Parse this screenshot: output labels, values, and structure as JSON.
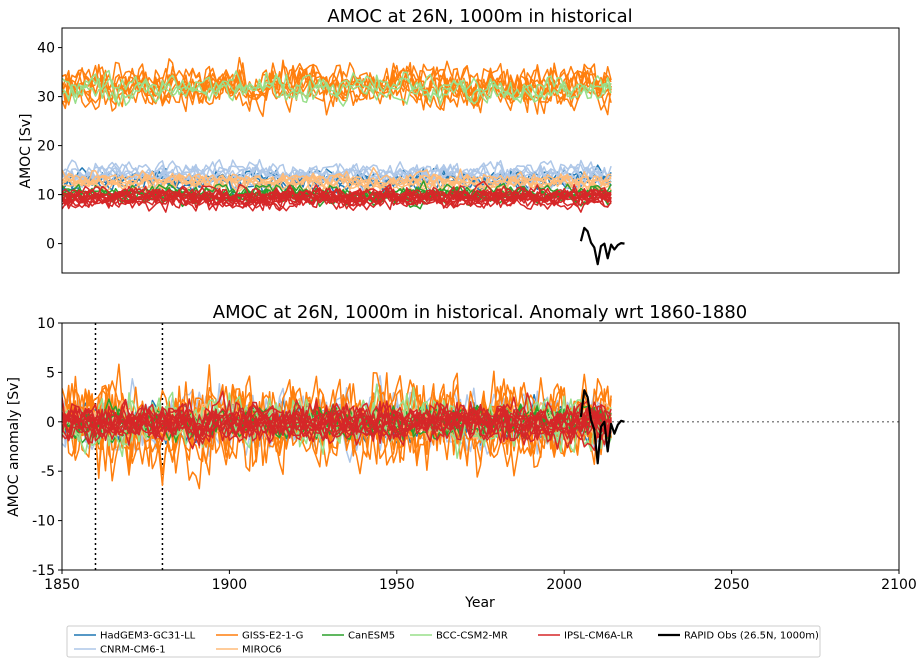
{
  "chart_data": [
    {
      "type": "line",
      "title": "AMOC at 26N, 1000m in historical",
      "xlabel": "",
      "ylabel": "AMOC [Sv]",
      "xlim": [
        1850,
        2100
      ],
      "ylim": [
        -6,
        44
      ],
      "yticks": [
        0,
        10,
        20,
        30,
        40
      ],
      "show_xticks": false,
      "series": [
        {
          "name": "HadGEM3-GC31-LL",
          "color": "#1f77b4",
          "x_range": [
            1850,
            2014
          ],
          "mean": 12.6,
          "amp": 1.3,
          "members": 4
        },
        {
          "name": "CNRM-CM6-1",
          "color": "#aec7e8",
          "x_range": [
            1850,
            2014
          ],
          "mean": 14.2,
          "amp": 1.4,
          "members": 6
        },
        {
          "name": "GISS-E2-1-G",
          "color": "#ff7f0e",
          "x_range": [
            1850,
            2014
          ],
          "mean": 32.2,
          "amp": 2.8,
          "members": 8
        },
        {
          "name": "MIROC6",
          "color": "#ffbb78",
          "x_range": [
            1850,
            2014
          ],
          "mean": 12.4,
          "amp": 1.1,
          "members": 6
        },
        {
          "name": "CanESM5",
          "color": "#2ca02c",
          "x_range": [
            1850,
            2014
          ],
          "mean": 10.2,
          "amp": 1.0,
          "members": 6
        },
        {
          "name": "BCC-CSM2-MR",
          "color": "#98df8a",
          "x_range": [
            1850,
            2014
          ],
          "mean": 31.5,
          "amp": 1.8,
          "members": 3
        },
        {
          "name": "IPSL-CM6A-LR",
          "color": "#d62728",
          "x_range": [
            1850,
            2014
          ],
          "mean": 9.4,
          "amp": 1.2,
          "members": 12
        }
      ],
      "observations": {
        "name": "RAPID Obs (26.5N, 1000m)",
        "color": "#000000",
        "x": [
          2005,
          2006,
          2007,
          2008,
          2009,
          2010,
          2011,
          2012,
          2013,
          2014,
          2015,
          2016,
          2017,
          2018
        ],
        "y": [
          0.5,
          3.2,
          2.5,
          0.2,
          -0.8,
          -4.2,
          -0.5,
          0.0,
          -3.0,
          -0.2,
          -1.2,
          -0.3,
          0.1,
          0.0
        ]
      }
    },
    {
      "type": "line",
      "title": "AMOC at 26N, 1000m in historical. Anomaly wrt 1860-1880",
      "xlabel": "Year",
      "ylabel": "AMOC anomaly [Sv]",
      "xlim": [
        1850,
        2100
      ],
      "ylim": [
        -15,
        10
      ],
      "yticks": [
        -15,
        -10,
        -5,
        0,
        5,
        10
      ],
      "xticks": [
        1850,
        1900,
        1950,
        2000,
        2050,
        2100
      ],
      "reference_period": [
        1860,
        1880
      ],
      "zero_line": true,
      "series": [
        {
          "name": "HadGEM3-GC31-LL",
          "color": "#1f77b4",
          "x_range": [
            1850,
            2014
          ],
          "amp": 1.3,
          "members": 4
        },
        {
          "name": "CNRM-CM6-1",
          "color": "#aec7e8",
          "x_range": [
            1850,
            2014
          ],
          "amp": 1.8,
          "members": 6
        },
        {
          "name": "GISS-E2-1-G",
          "color": "#ff7f0e",
          "x_range": [
            1850,
            2014
          ],
          "amp": 2.8,
          "members": 8
        },
        {
          "name": "MIROC6",
          "color": "#ffbb78",
          "x_range": [
            1850,
            2014
          ],
          "amp": 1.0,
          "members": 6
        },
        {
          "name": "CanESM5",
          "color": "#2ca02c",
          "x_range": [
            1850,
            2014
          ],
          "amp": 1.0,
          "members": 6
        },
        {
          "name": "BCC-CSM2-MR",
          "color": "#98df8a",
          "x_range": [
            1850,
            2014
          ],
          "amp": 1.8,
          "members": 3
        },
        {
          "name": "IPSL-CM6A-LR",
          "color": "#d62728",
          "x_range": [
            1850,
            2014
          ],
          "amp": 1.2,
          "members": 12
        }
      ],
      "observations": {
        "name": "RAPID Obs (26.5N, 1000m)",
        "color": "#000000",
        "x": [
          2005,
          2006,
          2007,
          2008,
          2009,
          2010,
          2011,
          2012,
          2013,
          2014,
          2015,
          2016,
          2017,
          2018
        ],
        "y": [
          0.5,
          3.2,
          2.5,
          0.2,
          -0.8,
          -4.2,
          -0.5,
          0.0,
          -3.0,
          -0.2,
          -1.2,
          -0.3,
          0.1,
          0.0
        ]
      }
    }
  ],
  "legend": {
    "placement": "bottom-center",
    "entries": [
      {
        "label": "HadGEM3-GC31-LL",
        "color": "#1f77b4"
      },
      {
        "label": "CNRM-CM6-1",
        "color": "#aec7e8"
      },
      {
        "label": "GISS-E2-1-G",
        "color": "#ff7f0e"
      },
      {
        "label": "MIROC6",
        "color": "#ffbb78"
      },
      {
        "label": "CanESM5",
        "color": "#2ca02c"
      },
      {
        "label": "BCC-CSM2-MR",
        "color": "#98df8a"
      },
      {
        "label": "IPSL-CM6A-LR",
        "color": "#d62728"
      },
      {
        "label": "RAPID Obs (26.5N, 1000m)",
        "color": "#000000"
      }
    ]
  }
}
